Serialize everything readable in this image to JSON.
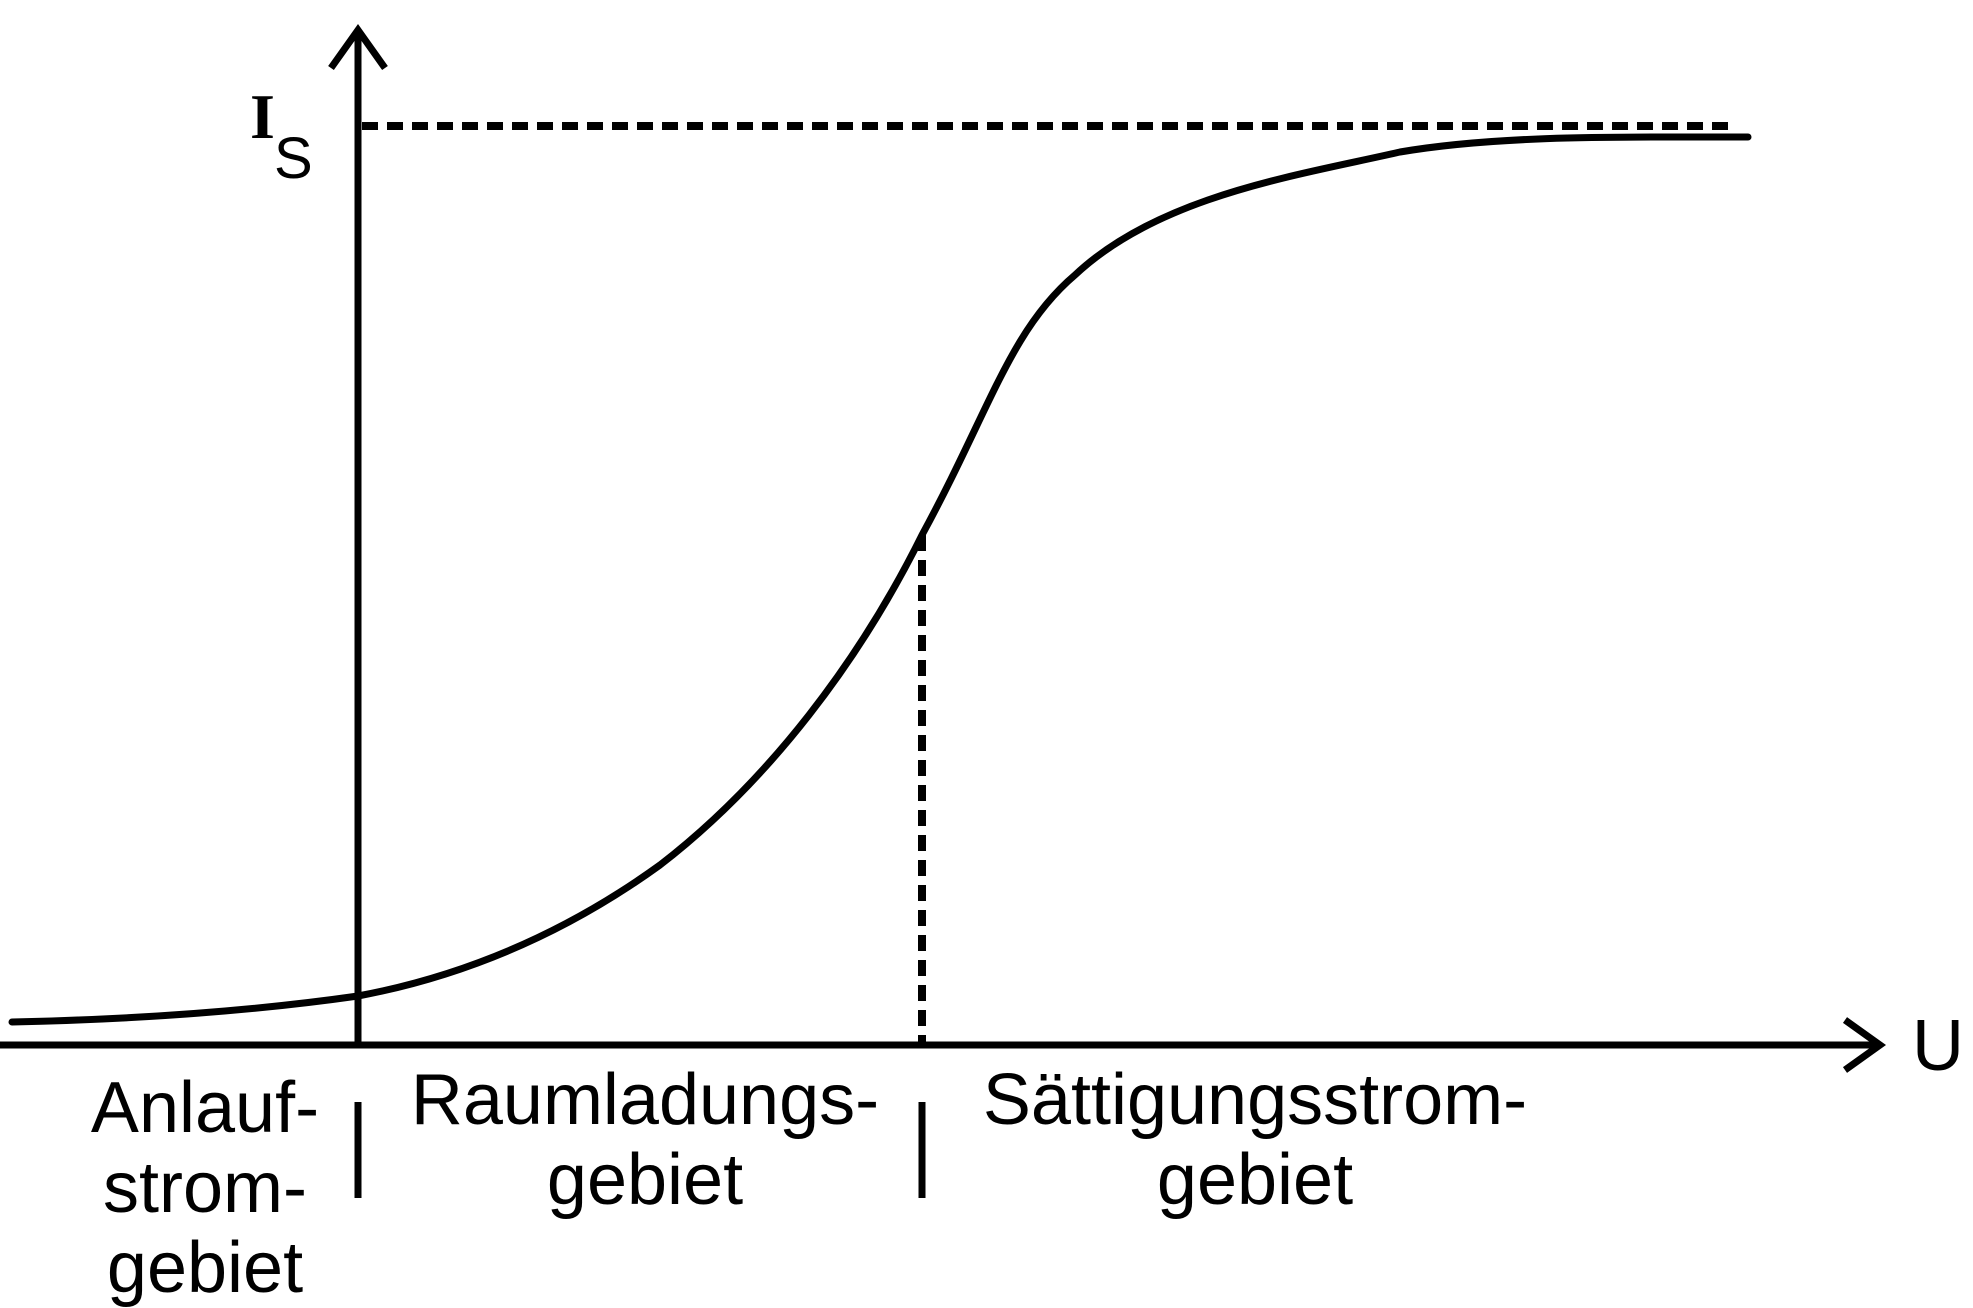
{
  "diagram": {
    "y_axis_label": {
      "main": "I",
      "sub": "S"
    },
    "x_axis_label": "U",
    "regions": [
      {
        "lines": [
          "Anlauf-",
          "strom-",
          "gebiet"
        ]
      },
      {
        "lines": [
          "Raumladungs-",
          "gebiet"
        ]
      },
      {
        "lines": [
          "Sättigungsstrom-",
          "gebiet"
        ]
      }
    ],
    "colors": {
      "stroke": "#000000",
      "background": "#ffffff"
    }
  }
}
